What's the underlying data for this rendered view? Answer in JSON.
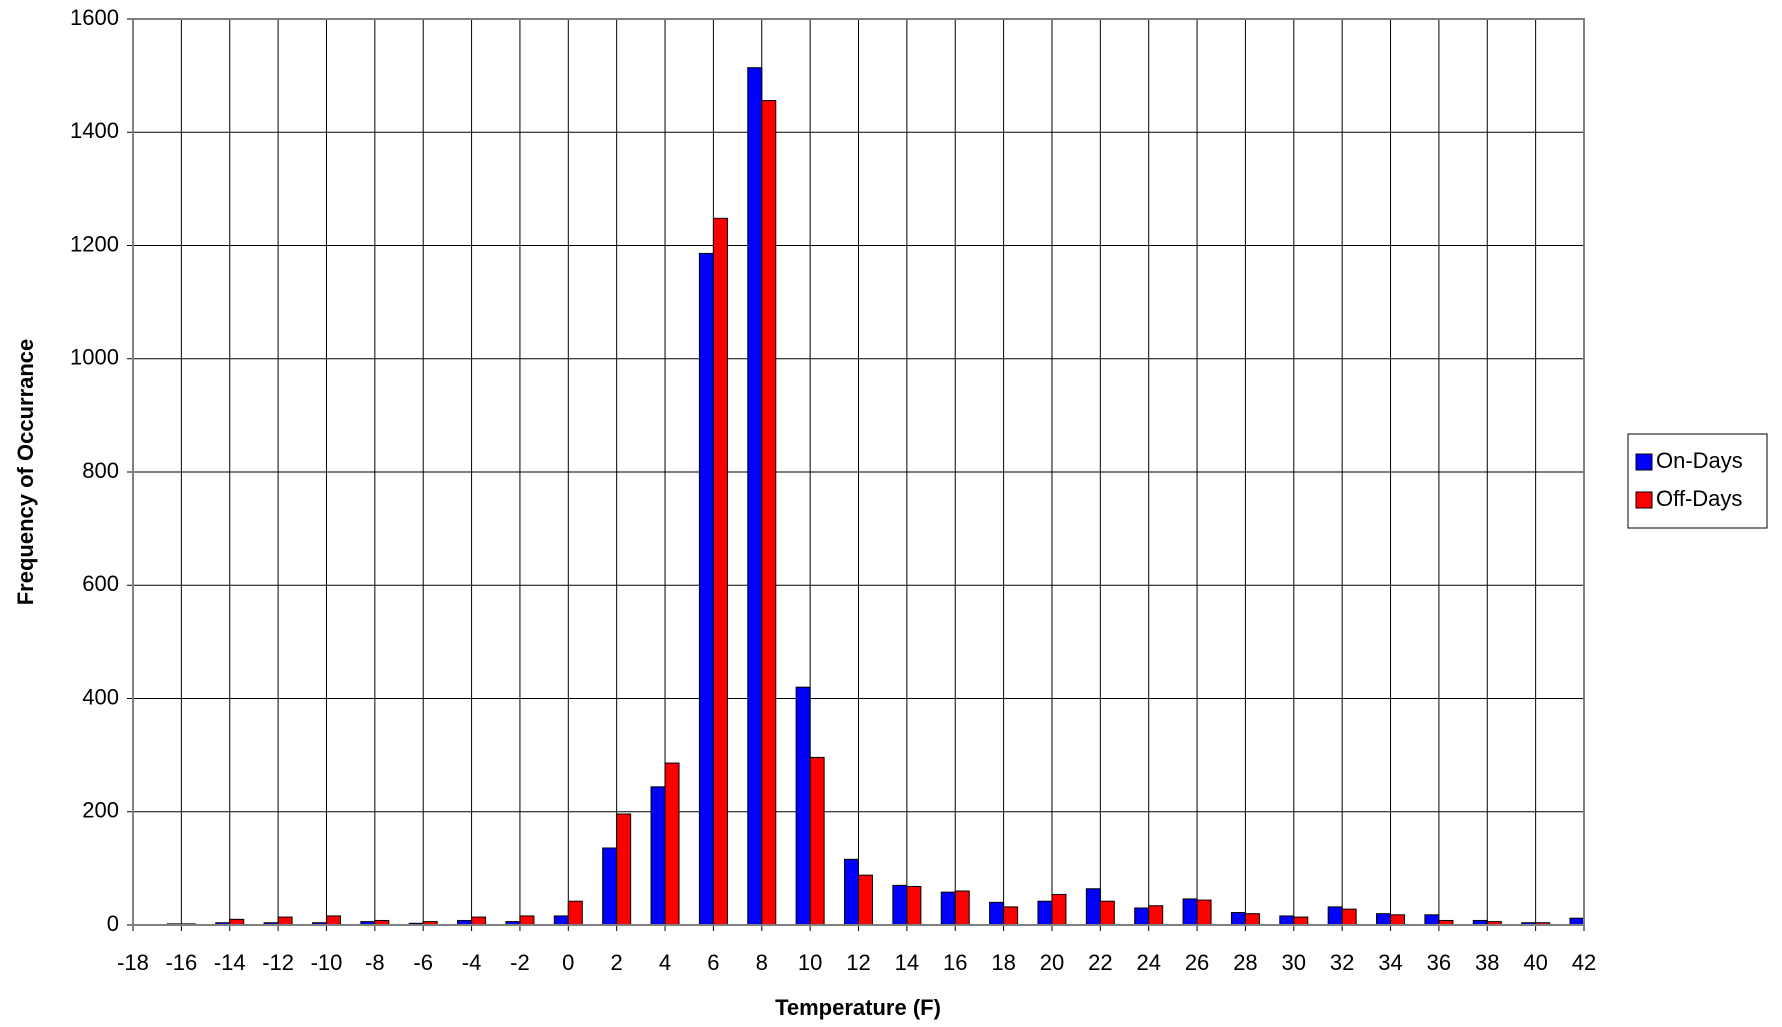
{
  "chart_data": {
    "type": "bar",
    "x_label": "Temperature (F)",
    "y_label": "Frequency of Occurrance",
    "x": [
      -18,
      -16,
      -14,
      -12,
      -10,
      -8,
      -6,
      -4,
      -2,
      0,
      2,
      4,
      6,
      8,
      10,
      12,
      14,
      16,
      18,
      20,
      22,
      24,
      26,
      28,
      30,
      32,
      34,
      36,
      38,
      40,
      42
    ],
    "series": [
      {
        "name": "On-Days",
        "color": "#0000ff",
        "values": [
          0,
          2,
          4,
          4,
          4,
          6,
          3,
          8,
          6,
          16,
          136,
          244,
          1186,
          1514,
          420,
          116,
          70,
          58,
          40,
          42,
          64,
          30,
          46,
          22,
          16,
          32,
          20,
          18,
          8,
          4,
          12
        ]
      },
      {
        "name": "Off-Days",
        "color": "#ff0000",
        "values": [
          0,
          2,
          10,
          14,
          16,
          8,
          6,
          14,
          16,
          42,
          196,
          286,
          1248,
          1456,
          296,
          88,
          68,
          60,
          32,
          54,
          42,
          34,
          44,
          20,
          14,
          28,
          18,
          8,
          6,
          4,
          6
        ]
      }
    ],
    "xlim": [
      -18,
      42
    ],
    "xticks": [
      -18,
      -16,
      -14,
      -12,
      -10,
      -8,
      -6,
      -4,
      -2,
      0,
      2,
      4,
      6,
      8,
      10,
      12,
      14,
      16,
      18,
      20,
      22,
      24,
      26,
      28,
      30,
      32,
      34,
      36,
      38,
      40,
      42
    ],
    "ylim": [
      0,
      1600
    ],
    "yticks": [
      0,
      200,
      400,
      600,
      800,
      1000,
      1200,
      1400,
      1600
    ],
    "grid": true,
    "legend": "right"
  }
}
